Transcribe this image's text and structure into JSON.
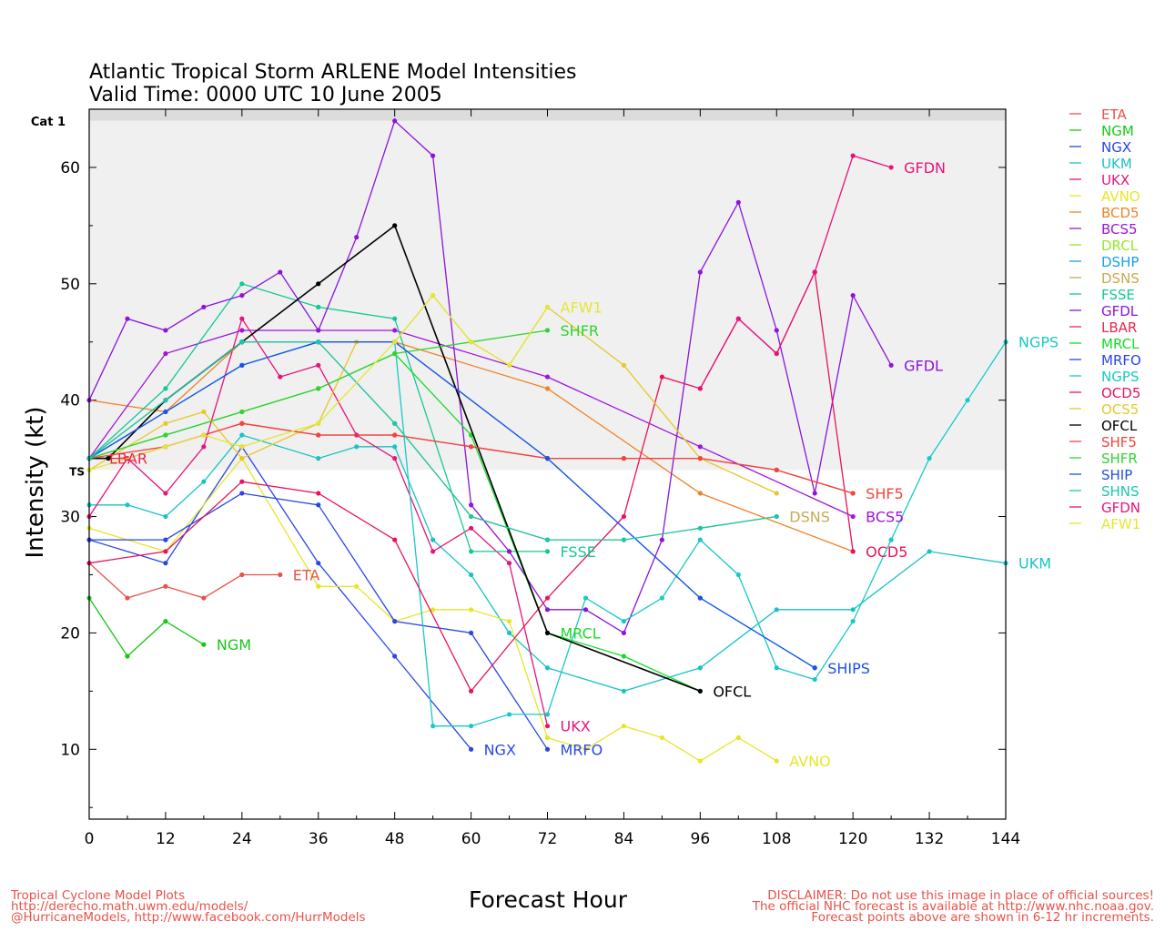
{
  "chart_data": {
    "type": "line",
    "title": "Atlantic Tropical Storm ARLENE Model Intensities",
    "subtitle": "Valid Time: 0000 UTC 10 June 2005",
    "xlabel": "Forecast Hour",
    "ylabel": "Intensity (kt)",
    "xlim": [
      0,
      144
    ],
    "ylim": [
      4,
      65
    ],
    "xticks": [
      0,
      12,
      24,
      36,
      48,
      60,
      72,
      84,
      96,
      108,
      120,
      132,
      144
    ],
    "yticks": [
      10,
      20,
      30,
      40,
      50,
      60
    ],
    "thresholds": [
      {
        "label": "TS",
        "value": 34,
        "band_color": "#f0f0f0"
      },
      {
        "label": "Cat 1",
        "value": 64,
        "band_color": "#dcdcdc"
      }
    ],
    "legend_position": "right",
    "series": [
      {
        "name": "ETA",
        "color": "#e8524a",
        "x": [
          0,
          6,
          12,
          18,
          24,
          30
        ],
        "y": [
          26,
          23,
          24,
          23,
          25,
          25
        ]
      },
      {
        "name": "NGM",
        "color": "#14c814",
        "x": [
          0,
          6,
          12,
          18
        ],
        "y": [
          23,
          18,
          21,
          19
        ]
      },
      {
        "name": "NGX",
        "color": "#2846e6",
        "x": [
          0,
          12,
          24,
          36,
          48,
          60
        ],
        "y": [
          28,
          26,
          36,
          26,
          18,
          10
        ]
      },
      {
        "name": "UKM",
        "color": "#19c3c3",
        "x": [
          0,
          6,
          12,
          18,
          24,
          36,
          42,
          48,
          54,
          60,
          66,
          72,
          84,
          96,
          108,
          120,
          132,
          144
        ],
        "y": [
          31,
          31,
          30,
          33,
          37,
          35,
          36,
          36,
          28,
          25,
          20,
          17,
          15,
          17,
          22,
          22,
          27,
          26
        ]
      },
      {
        "name": "UKX",
        "color": "#e6147a",
        "x": [
          0,
          6,
          12,
          18,
          24,
          30,
          36,
          42,
          48,
          54,
          60,
          66,
          72
        ],
        "y": [
          30,
          35,
          32,
          36,
          47,
          42,
          43,
          37,
          35,
          27,
          29,
          26,
          12
        ]
      },
      {
        "name": "AVNO",
        "color": "#e6e628",
        "x": [
          0,
          12,
          24,
          36,
          42,
          48,
          54,
          60,
          66,
          72,
          78,
          84,
          90,
          96,
          102,
          108
        ],
        "y": [
          29,
          27,
          35,
          24,
          24,
          21,
          22,
          22,
          21,
          11,
          10,
          12,
          11,
          9,
          11,
          9
        ]
      },
      {
        "name": "BCD5",
        "color": "#f08228",
        "x": [
          0,
          12,
          24,
          36,
          48,
          72,
          96,
          120
        ],
        "y": [
          40,
          39,
          45,
          45,
          45,
          41,
          32,
          27
        ]
      },
      {
        "name": "BCS5",
        "color": "#a014dc",
        "x": [
          0,
          12,
          24,
          36,
          48,
          72,
          96,
          120
        ],
        "y": [
          35,
          44,
          46,
          46,
          46,
          42,
          36,
          30
        ]
      },
      {
        "name": "DRCL",
        "color": "#96e628",
        "x": [],
        "y": []
      },
      {
        "name": "DSHP",
        "color": "#14a0e6",
        "x": [
          0,
          12,
          24,
          36,
          48,
          72,
          96,
          114
        ],
        "y": [
          35,
          39,
          43,
          45,
          45,
          35,
          23,
          17
        ]
      },
      {
        "name": "DSNS",
        "color": "#c8aa50",
        "x": [
          0,
          12,
          24,
          36,
          48,
          60,
          72,
          84,
          96,
          108
        ],
        "y": [
          35,
          40,
          45,
          45,
          38,
          30,
          28,
          28,
          29,
          30
        ]
      },
      {
        "name": "FSSE",
        "color": "#14c896",
        "x": [
          0,
          12,
          24,
          36,
          48,
          60,
          66,
          72
        ],
        "y": [
          35,
          41,
          50,
          48,
          47,
          27,
          27,
          27
        ]
      },
      {
        "name": "GFDL",
        "color": "#8c14dc",
        "x": [
          0,
          6,
          12,
          18,
          24,
          30,
          36,
          42,
          48,
          54,
          60,
          66,
          72,
          78,
          84,
          90,
          96,
          102,
          108,
          114,
          120,
          126
        ],
        "y": [
          40,
          47,
          46,
          48,
          49,
          51,
          46,
          54,
          64,
          61,
          31,
          27,
          22,
          22,
          20,
          28,
          51,
          57,
          46,
          32,
          49,
          43
        ]
      },
      {
        "name": "LBAR",
        "color": "#e62850",
        "x": [
          0,
          6,
          12,
          18,
          24,
          36,
          48,
          60,
          72,
          84,
          96,
          108,
          120
        ],
        "y": [
          35,
          35,
          36,
          37,
          38,
          37,
          37,
          36,
          35,
          35,
          35,
          34,
          32
        ]
      },
      {
        "name": "MRCL",
        "color": "#14dc28",
        "x": [
          0,
          12,
          24,
          36,
          48,
          60,
          72,
          84,
          96
        ],
        "y": [
          35,
          37,
          39,
          41,
          44,
          37,
          20,
          18,
          15
        ]
      },
      {
        "name": "MRFO",
        "color": "#2846e6",
        "x": [
          0,
          12,
          24,
          36,
          48,
          60,
          72
        ],
        "y": [
          28,
          28,
          32,
          31,
          21,
          20,
          10
        ]
      },
      {
        "name": "NGPS",
        "color": "#19c8c8",
        "x": [
          0,
          12,
          24,
          36,
          48,
          54,
          60,
          66,
          72,
          78,
          84,
          90,
          96,
          102,
          108,
          114,
          120,
          126,
          132,
          138,
          144
        ],
        "y": [
          35,
          39,
          43,
          45,
          45,
          12,
          12,
          13,
          13,
          23,
          21,
          23,
          28,
          25,
          17,
          16,
          21,
          28,
          35,
          40,
          45
        ]
      },
      {
        "name": "OCD5",
        "color": "#e6145a",
        "x": [
          0,
          12,
          24,
          36,
          48,
          60,
          72,
          84,
          90,
          96,
          102,
          108,
          114,
          120
        ],
        "y": [
          26,
          27,
          33,
          32,
          28,
          15,
          23,
          30,
          42,
          41,
          47,
          44,
          51,
          27
        ]
      },
      {
        "name": "OCS5",
        "color": "#e6c828",
        "x": [
          0,
          12,
          18,
          24,
          36,
          42,
          48,
          54,
          60,
          66,
          72,
          84,
          96,
          108
        ],
        "y": [
          34,
          38,
          39,
          35,
          38,
          45,
          45,
          49,
          45,
          43,
          48,
          43,
          35,
          32
        ]
      },
      {
        "name": "OFCL",
        "color": "#000000",
        "x": [
          0,
          3,
          12,
          24,
          36,
          48,
          72,
          96
        ],
        "y": [
          35,
          35,
          40,
          45,
          50,
          55,
          20,
          15
        ]
      },
      {
        "name": "SHF5",
        "color": "#f0463c",
        "x": [
          0,
          12,
          24,
          36,
          48,
          60,
          72,
          84,
          96,
          108,
          120
        ],
        "y": [
          35,
          36,
          38,
          37,
          37,
          36,
          35,
          35,
          35,
          34,
          32
        ]
      },
      {
        "name": "SHFR",
        "color": "#32d232",
        "x": [
          0,
          12,
          24,
          36,
          48,
          72
        ],
        "y": [
          35,
          37,
          39,
          41,
          44,
          46
        ]
      },
      {
        "name": "SHIP",
        "color": "#1e50e6",
        "x": [
          0,
          12,
          24,
          36,
          48,
          72,
          96,
          114
        ],
        "y": [
          35,
          39,
          43,
          45,
          45,
          35,
          23,
          17
        ]
      },
      {
        "name": "SHNS",
        "color": "#19c8aa",
        "x": [
          0,
          12,
          24,
          36,
          48,
          60,
          72,
          84,
          96,
          108
        ],
        "y": [
          35,
          40,
          45,
          45,
          38,
          30,
          28,
          28,
          29,
          30
        ]
      },
      {
        "name": "GFDN",
        "color": "#e6147a",
        "x": [
          96,
          102,
          108,
          114,
          120,
          126
        ],
        "y": [
          41,
          47,
          44,
          51,
          61,
          60
        ]
      },
      {
        "name": "AFW1",
        "color": "#e6e632",
        "x": [
          0,
          12,
          18,
          24,
          36,
          48,
          54,
          60,
          66,
          72
        ],
        "y": [
          34,
          36,
          37,
          36,
          38,
          45,
          49,
          45,
          43,
          48
        ]
      }
    ],
    "end_labels": [
      {
        "name": "ETA",
        "x": 30,
        "y": 25
      },
      {
        "name": "NGM",
        "x": 18,
        "y": 19
      },
      {
        "name": "NGX",
        "x": 60,
        "y": 10
      },
      {
        "name": "MRFO",
        "x": 72,
        "y": 10
      },
      {
        "name": "UKX",
        "x": 72,
        "y": 12
      },
      {
        "name": "AVNO",
        "x": 108,
        "y": 9
      },
      {
        "name": "FSSE",
        "x": 72,
        "y": 27
      },
      {
        "name": "MRCL",
        "x": 72,
        "y": 20
      },
      {
        "name": "OFCL",
        "x": 96,
        "y": 15
      },
      {
        "name": "SHFR",
        "x": 72,
        "y": 46
      },
      {
        "name": "AFW1",
        "x": 72,
        "y": 48
      },
      {
        "name": "DSNS",
        "x": 108,
        "y": 30
      },
      {
        "name": "SHIPS",
        "x": 114,
        "y": 17
      },
      {
        "name": "SHF5",
        "x": 120,
        "y": 32
      },
      {
        "name": "BCS5",
        "x": 120,
        "y": 30
      },
      {
        "name": "OCD5",
        "x": 120,
        "y": 27
      },
      {
        "name": "GFDN",
        "x": 126,
        "y": 60
      },
      {
        "name": "GFDL",
        "x": 126,
        "y": 43
      },
      {
        "name": "NGPS",
        "x": 144,
        "y": 45
      },
      {
        "name": "UKM",
        "x": 144,
        "y": 26
      },
      {
        "name": "LBAR",
        "x": 0,
        "y": 35
      }
    ]
  },
  "footer": {
    "left": [
      "Tropical Cyclone Model Plots",
      "http://derecho.math.uwm.edu/models/",
      "@HurricaneModels, http://www.facebook.com/HurrModels"
    ],
    "right": [
      "DISCLAIMER: Do not use this image in place of official sources!",
      "The official NHC forecast is available at http://www.nhc.noaa.gov.",
      "Forecast points above are shown in 6-12 hr increments."
    ]
  }
}
